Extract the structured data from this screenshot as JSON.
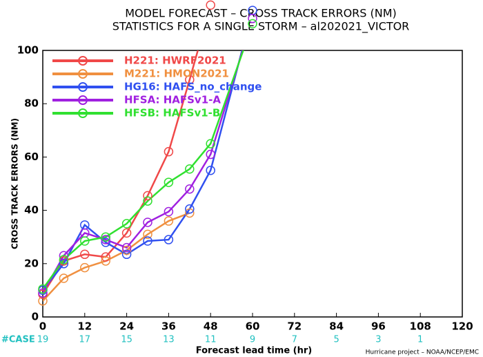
{
  "chart_data": {
    "type": "line",
    "title": "MODEL FORECAST – CROSS TRACK ERRORS (NM)",
    "subtitle": "STATISTICS FOR A SINGLE STORM – al202021_VICTOR",
    "ylabel": "CROSS TRACK ERRORS (NM)",
    "xlabel": "Forecast lead time (hr)",
    "credit": "Hurricane project – NOAA/NCEP/EMC",
    "x": [
      0,
      6,
      12,
      18,
      24,
      30,
      36,
      42,
      48,
      60
    ],
    "series": [
      {
        "name": "H221: HWRF2021",
        "color": "#f04848",
        "values": [
          8.5,
          21,
          23.5,
          22.5,
          31.5,
          45.5,
          62,
          89,
          117,
          null
        ]
      },
      {
        "name": "M221: HMON2021",
        "color": "#f09040",
        "values": [
          6,
          14.5,
          18.5,
          21,
          25,
          31,
          36,
          39,
          null,
          null
        ]
      },
      {
        "name": "HG16: HAFS_no_change",
        "color": "#3050f0",
        "values": [
          10,
          20,
          34.5,
          28,
          23.5,
          28.5,
          29,
          40.5,
          55,
          115
        ]
      },
      {
        "name": "HFSA: HAFSv1-A",
        "color": "#a020e0",
        "values": [
          9,
          23,
          31.5,
          29,
          26,
          35.5,
          39.5,
          48,
          61,
          112
        ]
      },
      {
        "name": "HFSB: HAFSv1-B",
        "color": "#30e030",
        "values": [
          10.5,
          21.5,
          28.5,
          30,
          35,
          43.5,
          50.5,
          55.5,
          65,
          110
        ]
      }
    ],
    "xlim": [
      0,
      120
    ],
    "xticks": [
      0,
      12,
      24,
      36,
      48,
      60,
      72,
      84,
      96,
      108,
      120
    ],
    "ylim": [
      0,
      100
    ],
    "yticks": [
      0,
      20,
      40,
      60,
      80,
      100
    ],
    "cases_label": "#CASE",
    "cases": {
      "x": [
        0,
        12,
        24,
        36,
        48,
        60,
        72,
        84,
        96,
        108
      ],
      "values": [
        19,
        17,
        15,
        13,
        11,
        9,
        7,
        5,
        3,
        1
      ]
    },
    "legend": "upper left"
  }
}
